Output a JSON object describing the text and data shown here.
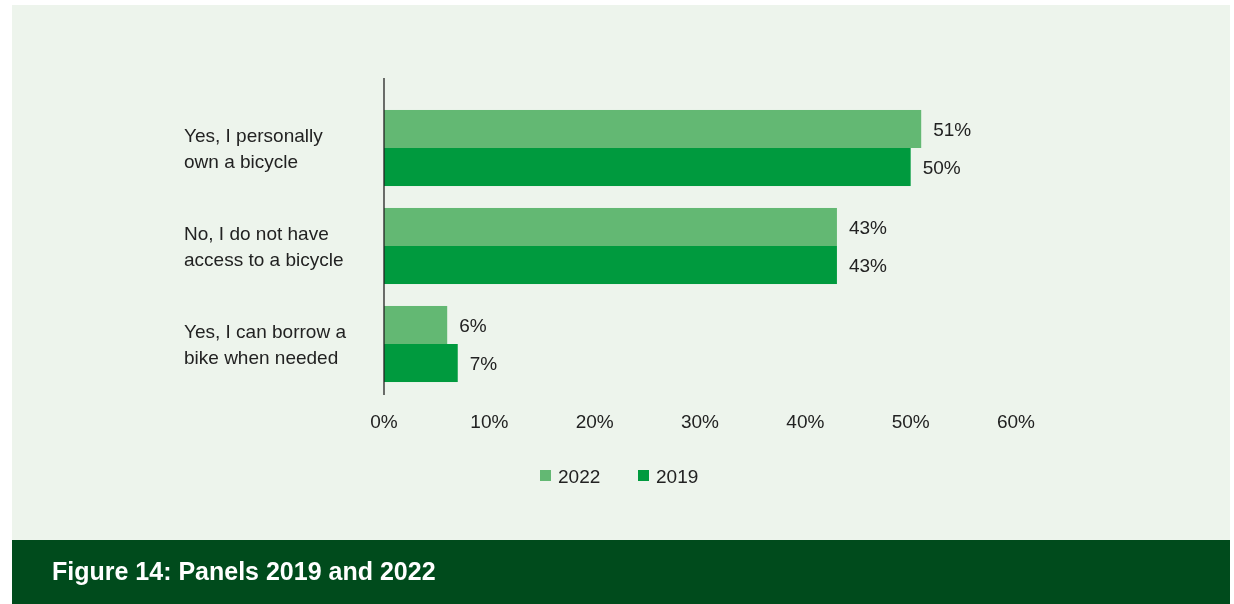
{
  "chart_data": {
    "type": "bar",
    "orientation": "horizontal",
    "title": "Figure 14: Panels 2019 and 2022",
    "categories": [
      "Yes, I personally own a bicycle",
      "No, I do not have access to a bicycle",
      "Yes, I can borrow a bike when needed"
    ],
    "series": [
      {
        "name": "2022",
        "color": "#63b873",
        "values": [
          51,
          43,
          6
        ],
        "value_labels": [
          "51%",
          "43%",
          "6%"
        ]
      },
      {
        "name": "2019",
        "color": "#009a3e",
        "values": [
          50,
          43,
          7
        ],
        "value_labels": [
          "50%",
          "43%",
          "7%"
        ]
      }
    ],
    "xlim": [
      0,
      60
    ],
    "xticks": [
      {
        "value": 0,
        "label": "0%"
      },
      {
        "value": 10,
        "label": "10%"
      },
      {
        "value": 20,
        "label": "20%"
      },
      {
        "value": 30,
        "label": "30%"
      },
      {
        "value": 40,
        "label": "40%"
      },
      {
        "value": 50,
        "label": "50%"
      },
      {
        "value": 60,
        "label": "60%"
      }
    ],
    "grid": false,
    "legend": "bottom"
  }
}
